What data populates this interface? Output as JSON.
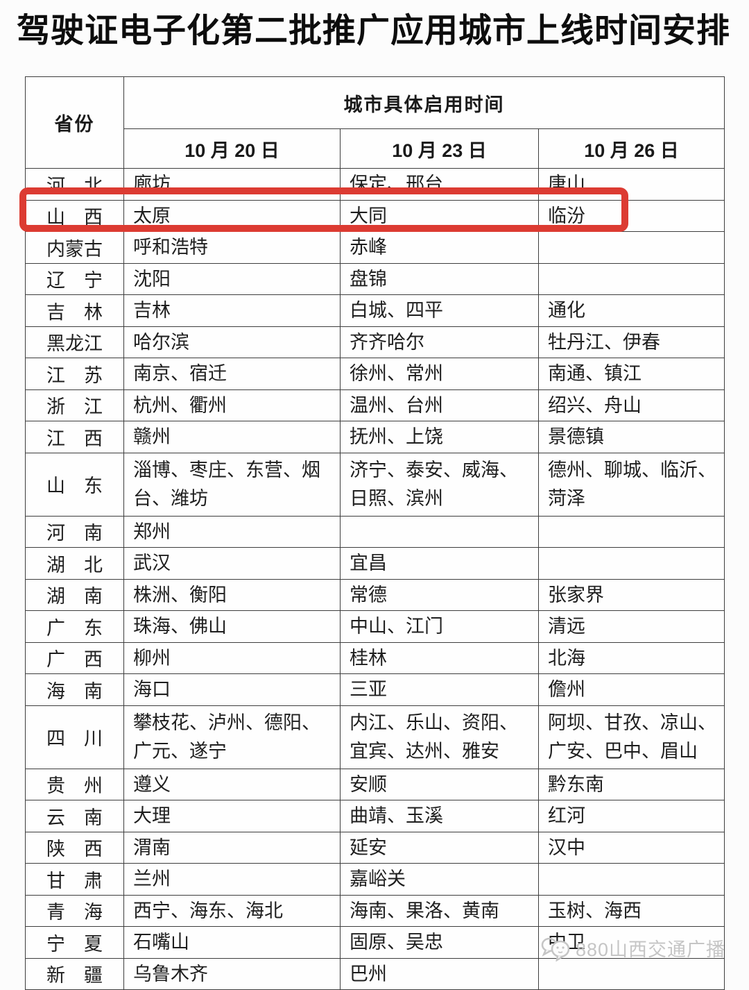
{
  "page_title": "驾驶证电子化第二批推广应用城市上线时间安排",
  "colors": {
    "highlight_red": "#dc3b32",
    "table_border": "#3d3d3d",
    "text": "#1e1e1e",
    "watermark_gray": "#c5c5c5"
  },
  "table": {
    "province_header": "省份",
    "group_header": "城市具体启用时间",
    "date_headers": [
      "10 月 20 日",
      "10 月 23 日",
      "10 月 26 日"
    ],
    "rows": [
      {
        "province": "河　北",
        "cities": [
          "廊坊",
          "保定、邢台",
          "唐山"
        ],
        "tall": false,
        "highlight": false
      },
      {
        "province": "山　西",
        "cities": [
          "太原",
          "大同",
          "临汾"
        ],
        "tall": false,
        "highlight": true
      },
      {
        "province": "内蒙古",
        "cities": [
          "呼和浩特",
          "赤峰",
          ""
        ],
        "tall": false,
        "highlight": false
      },
      {
        "province": "辽　宁",
        "cities": [
          "沈阳",
          "盘锦",
          ""
        ],
        "tall": false,
        "highlight": false
      },
      {
        "province": "吉　林",
        "cities": [
          "吉林",
          "白城、四平",
          "通化"
        ],
        "tall": false,
        "highlight": false
      },
      {
        "province": "黑龙江",
        "cities": [
          "哈尔滨",
          "齐齐哈尔",
          "牡丹江、伊春"
        ],
        "tall": false,
        "highlight": false
      },
      {
        "province": "江　苏",
        "cities": [
          "南京、宿迁",
          "徐州、常州",
          "南通、镇江"
        ],
        "tall": false,
        "highlight": false
      },
      {
        "province": "浙　江",
        "cities": [
          "杭州、衢州",
          "温州、台州",
          "绍兴、舟山"
        ],
        "tall": false,
        "highlight": false
      },
      {
        "province": "江　西",
        "cities": [
          "赣州",
          "抚州、上饶",
          "景德镇"
        ],
        "tall": false,
        "highlight": false
      },
      {
        "province": "山　东",
        "cities": [
          "淄博、枣庄、东营、烟台、潍坊",
          "济宁、泰安、威海、日照、滨州",
          "德州、聊城、临沂、菏泽"
        ],
        "tall": true,
        "highlight": false
      },
      {
        "province": "河　南",
        "cities": [
          "郑州",
          "",
          ""
        ],
        "tall": false,
        "highlight": false
      },
      {
        "province": "湖　北",
        "cities": [
          "武汉",
          "宜昌",
          ""
        ],
        "tall": false,
        "highlight": false
      },
      {
        "province": "湖　南",
        "cities": [
          "株洲、衡阳",
          "常德",
          "张家界"
        ],
        "tall": false,
        "highlight": false
      },
      {
        "province": "广　东",
        "cities": [
          "珠海、佛山",
          "中山、江门",
          "清远"
        ],
        "tall": false,
        "highlight": false
      },
      {
        "province": "广　西",
        "cities": [
          "柳州",
          "桂林",
          "北海"
        ],
        "tall": false,
        "highlight": false
      },
      {
        "province": "海　南",
        "cities": [
          "海口",
          "三亚",
          "儋州"
        ],
        "tall": false,
        "highlight": false
      },
      {
        "province": "四　川",
        "cities": [
          "攀枝花、泸州、德阳、广元、遂宁",
          "内江、乐山、资阳、宜宾、达州、雅安",
          "阿坝、甘孜、凉山、广安、巴中、眉山"
        ],
        "tall": true,
        "highlight": false
      },
      {
        "province": "贵　州",
        "cities": [
          "遵义",
          "安顺",
          "黔东南"
        ],
        "tall": false,
        "highlight": false
      },
      {
        "province": "云　南",
        "cities": [
          "大理",
          "曲靖、玉溪",
          "红河"
        ],
        "tall": false,
        "highlight": false
      },
      {
        "province": "陕　西",
        "cities": [
          "渭南",
          "延安",
          "汉中"
        ],
        "tall": false,
        "highlight": false
      },
      {
        "province": "甘　肃",
        "cities": [
          "兰州",
          "嘉峪关",
          ""
        ],
        "tall": false,
        "highlight": false
      },
      {
        "province": "青　海",
        "cities": [
          "西宁、海东、海北",
          "海南、果洛、黄南",
          "玉树、海西"
        ],
        "tall": false,
        "highlight": false
      },
      {
        "province": "宁　夏",
        "cities": [
          "石嘴山",
          "固原、吴忠",
          "中卫"
        ],
        "tall": false,
        "highlight": false
      },
      {
        "province": "新　疆",
        "cities": [
          "乌鲁木齐",
          "巴州",
          ""
        ],
        "tall": false,
        "highlight": false
      }
    ]
  },
  "highlight": {
    "row_province": "山　西",
    "color": "#dc3b32"
  },
  "watermark": {
    "icon": "chat-bubbles-mascot",
    "text": "880山西交通广播"
  }
}
